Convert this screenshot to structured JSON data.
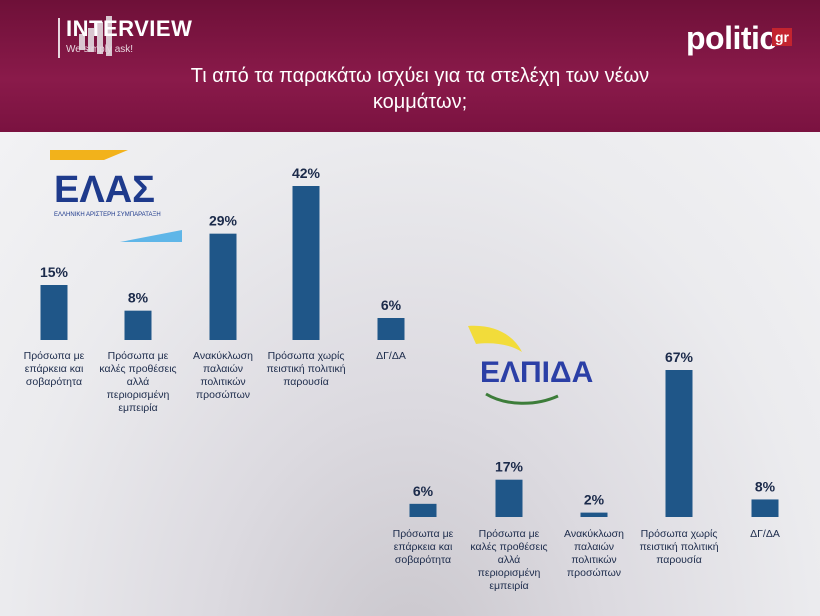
{
  "header": {
    "brand_name": "INTERVIEW",
    "brand_tagline": "We simply ask!",
    "publisher": "politic",
    "publisher_suffix": "gr",
    "title_line1": "Τι από τα παρακάτω ισχύει για τα στελέχη των νέων",
    "title_line2": "κομμάτων;"
  },
  "logos": {
    "elas_name": "ΕΛΑΣ",
    "elas_subtitle": "ΕΛΛΗΝΙΚΗ ΑΡΙΣΤΕΡΗ ΣΥΜΠΑΡΑΤΑΞΗ",
    "elpida_name": "ΕΛΠΙΔΑ"
  },
  "colors": {
    "bar": "#1f5688",
    "header": "#7e1444",
    "label": "#1b2a4a"
  },
  "chart_data": [
    {
      "type": "bar",
      "title": "",
      "categories": [
        "Πρόσωπα με επάρκεια και σοβαρότητα",
        "Πρόσωπα με καλές προθέσεις αλλά περιορισμένη εμπειρία",
        "Ανακύκλωση παλαιών πολιτικών προσώπων",
        "Πρόσωπα χωρίς πειστική πολιτική παρουσία",
        "ΔΓ/ΔΑ"
      ],
      "values": [
        15,
        8,
        29,
        42,
        6
      ],
      "value_labels": [
        "15%",
        "8%",
        "29%",
        "42%",
        "6%"
      ],
      "ylim": [
        0,
        42
      ]
    },
    {
      "type": "bar",
      "title": "",
      "categories": [
        "Πρόσωπα με επάρκεια και σοβαρότητα",
        "Πρόσωπα με καλές προθέσεις αλλά περιορισμένη εμπειρία",
        "Ανακύκλωση παλαιών πολιτικών προσώπων",
        "Πρόσωπα χωρίς πειστική πολιτική παρουσία",
        "ΔΓ/ΔΑ"
      ],
      "values": [
        6,
        17,
        2,
        67,
        8
      ],
      "value_labels": [
        "6%",
        "17%",
        "2%",
        "67%",
        "8%"
      ],
      "ylim": [
        0,
        67
      ]
    }
  ]
}
